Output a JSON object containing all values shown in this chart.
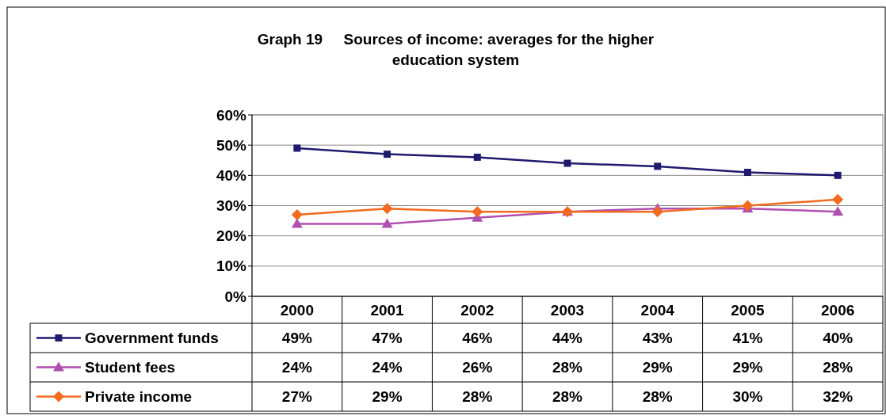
{
  "chart_data": {
    "type": "line",
    "title": "Graph 19     Sources of income: averages for the higher education system",
    "categories": [
      "2000",
      "2001",
      "2002",
      "2003",
      "2004",
      "2005",
      "2006"
    ],
    "series": [
      {
        "name": "Government funds",
        "color": "#1f1a6e",
        "marker": "square",
        "values": [
          49,
          47,
          46,
          44,
          43,
          41,
          40
        ],
        "value_labels": [
          "49%",
          "47%",
          "46%",
          "44%",
          "43%",
          "41%",
          "40%"
        ]
      },
      {
        "name": "Student fees",
        "color": "#b04fb0",
        "marker": "triangle",
        "values": [
          24,
          24,
          26,
          28,
          29,
          29,
          28
        ],
        "value_labels": [
          "24%",
          "24%",
          "26%",
          "28%",
          "29%",
          "29%",
          "28%"
        ]
      },
      {
        "name": "Private income",
        "color": "#f26a1e",
        "marker": "diamond",
        "values": [
          27,
          29,
          28,
          28,
          28,
          30,
          32
        ],
        "value_labels": [
          "27%",
          "29%",
          "28%",
          "28%",
          "28%",
          "30%",
          "32%"
        ]
      }
    ],
    "ylim": [
      0,
      60
    ],
    "yticks": [
      {
        "value": 0,
        "label": "0%"
      },
      {
        "value": 10,
        "label": "10%"
      },
      {
        "value": 20,
        "label": "20%"
      },
      {
        "value": 30,
        "label": "30%"
      },
      {
        "value": 40,
        "label": "40%"
      },
      {
        "value": 50,
        "label": "50%"
      },
      {
        "value": 60,
        "label": "60%"
      }
    ],
    "grid": "y",
    "legend": "bottom",
    "line_style": "solid"
  }
}
